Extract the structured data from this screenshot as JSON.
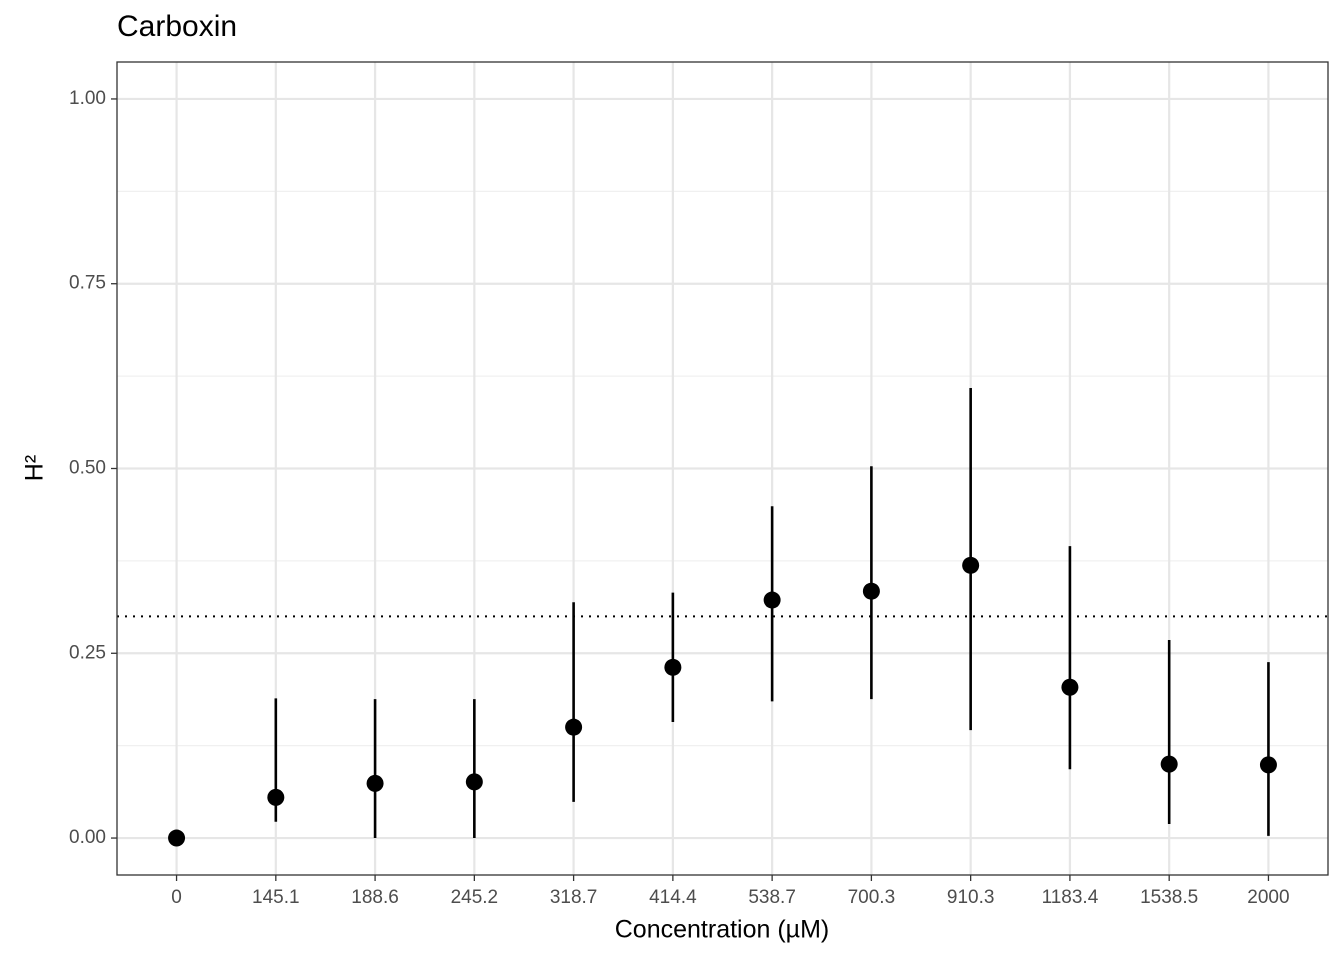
{
  "chart_data": {
    "type": "pointrange",
    "title": "Carboxin",
    "x_label": "Concentration (µM)",
    "y_label": "H²",
    "categories": [
      "0",
      "145.1",
      "188.6",
      "245.2",
      "318.7",
      "414.4",
      "538.7",
      "700.3",
      "910.3",
      "1183.4",
      "1538.5",
      "2000"
    ],
    "series": [
      {
        "color": "#000000",
        "values": [
          0.0,
          0.055,
          0.074,
          0.076,
          0.15,
          0.231,
          0.322,
          0.334,
          0.369,
          0.204,
          0.1,
          0.099
        ],
        "lower": [
          0.0,
          0.022,
          0.0,
          0.0,
          0.049,
          0.157,
          0.185,
          0.188,
          0.146,
          0.093,
          0.019,
          0.003
        ],
        "upper": [
          0.0,
          0.189,
          0.188,
          0.188,
          0.319,
          0.332,
          0.449,
          0.503,
          0.609,
          0.395,
          0.268,
          0.238
        ]
      }
    ],
    "hline": 0.3,
    "ylim": [
      -0.05,
      1.05
    ],
    "yticks": [
      {
        "value": 0,
        "label": "0.00"
      },
      {
        "value": 0.25,
        "label": "0.25"
      },
      {
        "value": 0.5,
        "label": "0.50"
      },
      {
        "value": 0.75,
        "label": "0.75"
      },
      {
        "value": 1,
        "label": "1.00"
      }
    ],
    "yminor": [
      0.125,
      0.375,
      0.625,
      0.875
    ],
    "grid": true
  }
}
